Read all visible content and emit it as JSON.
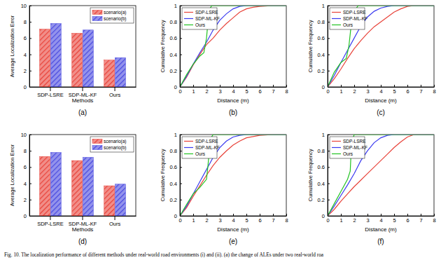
{
  "caption": "Fig. 10.  The localization performance of different methods under real-world road environments (i) and (ii). (a) the change of ALEs under two real-world roa",
  "chart_data": [
    {
      "type": "bar",
      "title": "(a)",
      "x_label": "Methods",
      "y_label": "Average Localization Error",
      "categories": [
        "SDP-LSRE",
        "SDP-ML-KF",
        "Ours"
      ],
      "series": [
        {
          "name": "scenario(a)",
          "color": "#e8433a",
          "values": [
            7.1,
            6.6,
            3.3
          ]
        },
        {
          "name": "scenario(b)",
          "color": "#4b4be0",
          "values": [
            7.8,
            7.0,
            3.6
          ]
        }
      ],
      "ylim": [
        0,
        10
      ],
      "yticks": [
        0,
        2,
        4,
        6,
        8,
        10
      ],
      "grid": false,
      "legend": "upper right"
    },
    {
      "type": "line",
      "title": "(b)",
      "x_label": "Distance (m)",
      "y_label": "Cumulative Frequency",
      "series": [
        {
          "name": "SDP-LSRE",
          "color": "#e8433a",
          "x": [
            0,
            0.5,
            1,
            1.5,
            2,
            2.5,
            3,
            3.5,
            4,
            4.5,
            5,
            5.5,
            6,
            7,
            8
          ],
          "values": [
            0,
            0.12,
            0.27,
            0.4,
            0.52,
            0.6,
            0.7,
            0.78,
            0.85,
            0.92,
            0.96,
            0.98,
            0.99,
            1,
            1
          ]
        },
        {
          "name": "SDP-ML-KF",
          "color": "#3b3bf0",
          "x": [
            0,
            0.5,
            1,
            1.5,
            2,
            2.5,
            3,
            3.5,
            4,
            4.5,
            5,
            8
          ],
          "values": [
            0,
            0.13,
            0.28,
            0.42,
            0.55,
            0.7,
            0.82,
            0.9,
            0.96,
            0.99,
            1,
            1
          ]
        },
        {
          "name": "Ours",
          "color": "#22c322",
          "x": [
            0,
            0.5,
            1,
            1.5,
            1.8,
            2,
            2.2,
            2.4,
            8
          ],
          "values": [
            0,
            0.15,
            0.28,
            0.38,
            0.42,
            0.6,
            0.95,
            1,
            1
          ]
        }
      ],
      "xlim": [
        0,
        8
      ],
      "xticks": [
        0,
        1,
        2,
        3,
        4,
        5,
        6,
        7,
        8
      ],
      "ylim": [
        0,
        1
      ],
      "yticks": [
        0,
        0.2,
        0.4,
        0.6,
        0.8,
        1
      ],
      "grid": false,
      "legend": "upper left"
    },
    {
      "type": "line",
      "title": "(c)",
      "x_label": "Distance (m)",
      "y_label": "Cumulative Frequency",
      "series": [
        {
          "name": "SDP-LSRE",
          "color": "#e8433a",
          "x": [
            0,
            0.5,
            1,
            1.5,
            2,
            2.5,
            3,
            3.5,
            4,
            4.5,
            5,
            5.5,
            6,
            6.5,
            8
          ],
          "values": [
            0,
            0.1,
            0.22,
            0.35,
            0.47,
            0.57,
            0.66,
            0.74,
            0.8,
            0.86,
            0.92,
            0.96,
            0.99,
            1,
            1
          ]
        },
        {
          "name": "SDP-ML-KF",
          "color": "#3b3bf0",
          "x": [
            0,
            0.5,
            1,
            1.5,
            2,
            2.5,
            3,
            3.5,
            4,
            4.5,
            5,
            8
          ],
          "values": [
            0,
            0.14,
            0.3,
            0.45,
            0.6,
            0.75,
            0.86,
            0.93,
            0.97,
            0.99,
            1,
            1
          ]
        },
        {
          "name": "Ours",
          "color": "#22c322",
          "x": [
            0,
            0.5,
            1,
            1.4,
            1.6,
            1.8,
            2,
            2.3,
            8
          ],
          "values": [
            0,
            0.18,
            0.3,
            0.35,
            0.5,
            0.8,
            0.93,
            1,
            1
          ]
        }
      ],
      "xlim": [
        0,
        8
      ],
      "xticks": [
        0,
        1,
        2,
        3,
        4,
        5,
        6,
        7,
        8
      ],
      "ylim": [
        0,
        1
      ],
      "yticks": [
        0,
        0.2,
        0.4,
        0.6,
        0.8,
        1
      ],
      "grid": false,
      "legend": "upper left"
    },
    {
      "type": "bar",
      "title": "(d)",
      "x_label": "Methods",
      "y_label": "Average Localization Error",
      "categories": [
        "SDP-LSRE",
        "SDP-ML-KF",
        "Ours"
      ],
      "series": [
        {
          "name": "scenario(a)",
          "color": "#e8433a",
          "values": [
            7.3,
            6.8,
            3.7
          ]
        },
        {
          "name": "scenario(b)",
          "color": "#4b4be0",
          "values": [
            7.8,
            7.2,
            3.9
          ]
        }
      ],
      "ylim": [
        0,
        10
      ],
      "yticks": [
        0,
        2,
        4,
        6,
        8,
        10
      ],
      "grid": false,
      "legend": "upper right"
    },
    {
      "type": "line",
      "title": "(e)",
      "x_label": "Distance (m)",
      "y_label": "Cumulative Frequency",
      "series": [
        {
          "name": "SDP-LSRE",
          "color": "#e8433a",
          "x": [
            0,
            0.5,
            1,
            1.5,
            2,
            2.5,
            3,
            3.5,
            4,
            4.5,
            5,
            6,
            7,
            8
          ],
          "values": [
            0,
            0.1,
            0.24,
            0.37,
            0.5,
            0.62,
            0.72,
            0.8,
            0.87,
            0.92,
            0.96,
            0.99,
            1,
            1
          ]
        },
        {
          "name": "SDP-ML-KF",
          "color": "#3b3bf0",
          "x": [
            0,
            0.5,
            1,
            1.5,
            2,
            2.5,
            3,
            3.5,
            4,
            4.5,
            5,
            8
          ],
          "values": [
            0,
            0.12,
            0.27,
            0.42,
            0.57,
            0.72,
            0.84,
            0.92,
            0.97,
            0.99,
            1,
            1
          ]
        },
        {
          "name": "Ours",
          "color": "#22c322",
          "x": [
            0,
            0.5,
            1,
            1.5,
            2,
            2.1,
            2.3,
            2.5,
            8
          ],
          "values": [
            0,
            0.14,
            0.27,
            0.35,
            0.45,
            0.6,
            0.95,
            1,
            1
          ]
        }
      ],
      "xlim": [
        0,
        8
      ],
      "xticks": [
        0,
        1,
        2,
        3,
        4,
        5,
        6,
        7,
        8
      ],
      "ylim": [
        0,
        1
      ],
      "yticks": [
        0,
        0.2,
        0.4,
        0.6,
        0.8,
        1
      ],
      "grid": false,
      "legend": "upper left"
    },
    {
      "type": "line",
      "title": "(f)",
      "x_label": "Distance (m)",
      "y_label": "Cumulative Frequency",
      "series": [
        {
          "name": "SDP-LSRE",
          "color": "#e8433a",
          "x": [
            0,
            0.5,
            1,
            1.5,
            2,
            2.5,
            3,
            3.5,
            4,
            4.5,
            5,
            5.5,
            6,
            6.5,
            8
          ],
          "values": [
            0,
            0.08,
            0.18,
            0.27,
            0.36,
            0.44,
            0.52,
            0.6,
            0.68,
            0.76,
            0.84,
            0.91,
            0.97,
            1,
            1
          ]
        },
        {
          "name": "SDP-ML-KF",
          "color": "#3b3bf0",
          "x": [
            0,
            0.5,
            1,
            1.5,
            2,
            2.5,
            3,
            3.5,
            4,
            4.5,
            5,
            8
          ],
          "values": [
            0,
            0.12,
            0.25,
            0.38,
            0.52,
            0.68,
            0.8,
            0.9,
            0.96,
            0.99,
            1,
            1
          ]
        },
        {
          "name": "Ours",
          "color": "#22c322",
          "x": [
            0,
            0.5,
            1,
            1.5,
            1.7,
            1.8,
            2,
            8
          ],
          "values": [
            0,
            0.15,
            0.3,
            0.45,
            0.55,
            0.9,
            1,
            1
          ]
        }
      ],
      "xlim": [
        0,
        8
      ],
      "xticks": [
        0,
        1,
        2,
        3,
        4,
        5,
        6,
        7,
        8
      ],
      "ylim": [
        0,
        1
      ],
      "yticks": [
        0,
        0.2,
        0.4,
        0.6,
        0.8,
        1
      ],
      "grid": false,
      "legend": "upper left"
    }
  ]
}
